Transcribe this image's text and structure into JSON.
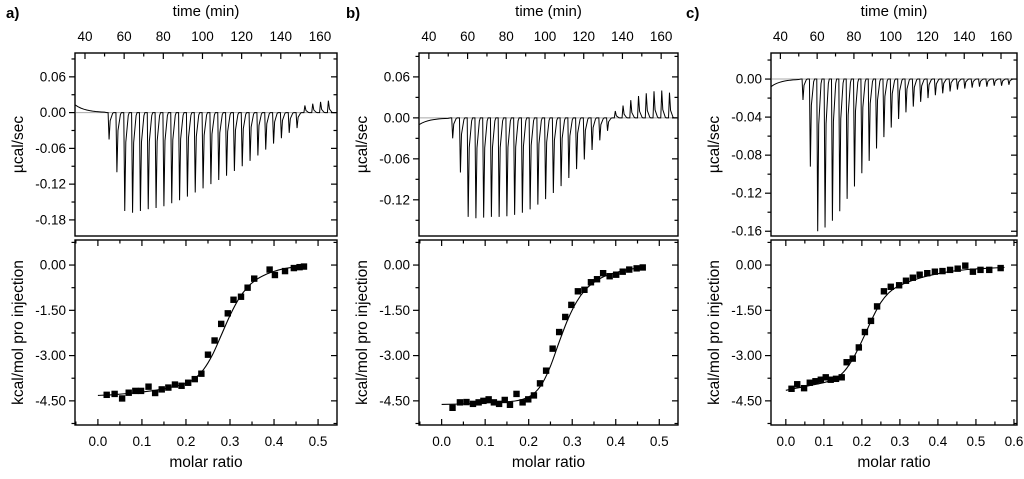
{
  "figure_bg": "#ffffff",
  "colors": {
    "line": "#000000",
    "zero_baseline": "#a8a8a8",
    "marker": "#000000"
  },
  "chart_data": [
    {
      "panel_label": "a)",
      "thermogram": {
        "type": "line",
        "xlabel": "time (min)",
        "ylabel": "µcal/sec",
        "x_ticks": [
          40,
          60,
          80,
          100,
          120,
          140,
          160
        ],
        "x_minor_step": 10,
        "x_range": [
          34.9,
          168.7
        ],
        "y_tick_labels": [
          "0.06",
          "0.00",
          "-0.06",
          "-0.12",
          "-0.18"
        ],
        "y_minor_step": 0.03,
        "y_range": [
          0.1,
          -0.207
        ],
        "lead_in_start_value": 0.013,
        "injection_start_min": 52,
        "injection_interval_min": 4,
        "peak_heights_ucal_per_sec": [
          -0.045,
          -0.1,
          -0.165,
          -0.168,
          -0.165,
          -0.162,
          -0.16,
          -0.157,
          -0.152,
          -0.147,
          -0.141,
          -0.134,
          -0.127,
          -0.12,
          -0.113,
          -0.106,
          -0.098,
          -0.09,
          -0.081,
          -0.072,
          -0.062,
          -0.052,
          -0.043,
          -0.034,
          -0.026,
          0.012,
          0.015,
          0.018,
          0.02
        ]
      },
      "binding": {
        "type": "scatter",
        "xlabel": "molar ratio",
        "ylabel": "kcal/mol pro injection",
        "x_tick_labels": [
          "0.0",
          "0.1",
          "0.2",
          "0.3",
          "0.4",
          "0.5"
        ],
        "x_minor_step": 0.05,
        "x_range": [
          -0.052,
          0.543
        ],
        "y_tick_labels": [
          "0.00",
          "-1.50",
          "-3.00",
          "-4.50"
        ],
        "y_minor_step": 0.75,
        "y_range": [
          0.83,
          -5.3
        ],
        "points": [
          [
            0.02,
            -4.3
          ],
          [
            0.038,
            -4.27
          ],
          [
            0.055,
            -4.42
          ],
          [
            0.07,
            -4.23
          ],
          [
            0.085,
            -4.17
          ],
          [
            0.098,
            -4.17
          ],
          [
            0.115,
            -4.03
          ],
          [
            0.13,
            -4.24
          ],
          [
            0.145,
            -4.12
          ],
          [
            0.16,
            -4.06
          ],
          [
            0.175,
            -3.96
          ],
          [
            0.19,
            -4.0
          ],
          [
            0.205,
            -3.9
          ],
          [
            0.22,
            -3.78
          ],
          [
            0.235,
            -3.6
          ],
          [
            0.25,
            -2.97
          ],
          [
            0.265,
            -2.5
          ],
          [
            0.28,
            -1.95
          ],
          [
            0.295,
            -1.6
          ],
          [
            0.308,
            -1.15
          ],
          [
            0.325,
            -1.05
          ],
          [
            0.34,
            -0.75
          ],
          [
            0.355,
            -0.45
          ],
          [
            0.39,
            -0.15
          ],
          [
            0.402,
            -0.33
          ],
          [
            0.425,
            -0.2
          ],
          [
            0.445,
            -0.1
          ],
          [
            0.458,
            -0.07
          ],
          [
            0.468,
            -0.05
          ]
        ],
        "fit": [
          [
            0.0,
            -4.32
          ],
          [
            0.04,
            -4.29
          ],
          [
            0.08,
            -4.24
          ],
          [
            0.12,
            -4.17
          ],
          [
            0.15,
            -4.1
          ],
          [
            0.18,
            -4.0
          ],
          [
            0.2,
            -3.92
          ],
          [
            0.22,
            -3.76
          ],
          [
            0.24,
            -3.46
          ],
          [
            0.26,
            -2.98
          ],
          [
            0.28,
            -2.33
          ],
          [
            0.3,
            -1.67
          ],
          [
            0.32,
            -1.12
          ],
          [
            0.34,
            -0.73
          ],
          [
            0.36,
            -0.48
          ],
          [
            0.38,
            -0.32
          ],
          [
            0.4,
            -0.21
          ],
          [
            0.42,
            -0.13
          ],
          [
            0.44,
            -0.08
          ],
          [
            0.465,
            -0.04
          ]
        ]
      }
    },
    {
      "panel_label": "b)",
      "thermogram": {
        "type": "line",
        "xlabel": "time (min)",
        "ylabel": "µcal/sec",
        "x_ticks": [
          40,
          60,
          80,
          100,
          120,
          140,
          160
        ],
        "x_minor_step": 10,
        "x_range": [
          34.9,
          168.7
        ],
        "y_tick_labels": [
          "0.06",
          "0.00",
          "-0.06",
          "-0.12"
        ],
        "y_minor_step": 0.03,
        "y_range": [
          0.095,
          -0.173
        ],
        "lead_in_start_value": -0.01,
        "injection_start_min": 52,
        "injection_interval_min": 4,
        "peak_heights_ucal_per_sec": [
          -0.03,
          -0.08,
          -0.145,
          -0.147,
          -0.146,
          -0.145,
          -0.145,
          -0.144,
          -0.142,
          -0.139,
          -0.134,
          -0.127,
          -0.119,
          -0.11,
          -0.1,
          -0.088,
          -0.075,
          -0.061,
          -0.047,
          -0.033,
          -0.019,
          0.01,
          0.018,
          0.026,
          0.032,
          0.036,
          0.039,
          0.04,
          0.037
        ]
      },
      "binding": {
        "type": "scatter",
        "xlabel": "molar ratio",
        "ylabel": "kcal/mol pro injection",
        "x_tick_labels": [
          "0.0",
          "0.1",
          "0.2",
          "0.3",
          "0.4",
          "0.5"
        ],
        "x_minor_step": 0.05,
        "x_range": [
          -0.052,
          0.543
        ],
        "y_tick_labels": [
          "0.00",
          "-1.50",
          "-3.00",
          "-4.50"
        ],
        "y_minor_step": 0.75,
        "y_range": [
          0.83,
          -5.3
        ],
        "points": [
          [
            0.025,
            -4.73
          ],
          [
            0.042,
            -4.55
          ],
          [
            0.057,
            -4.54
          ],
          [
            0.072,
            -4.6
          ],
          [
            0.085,
            -4.55
          ],
          [
            0.096,
            -4.5
          ],
          [
            0.108,
            -4.45
          ],
          [
            0.12,
            -4.55
          ],
          [
            0.132,
            -4.6
          ],
          [
            0.145,
            -4.47
          ],
          [
            0.157,
            -4.63
          ],
          [
            0.172,
            -4.27
          ],
          [
            0.186,
            -4.55
          ],
          [
            0.199,
            -4.45
          ],
          [
            0.212,
            -4.32
          ],
          [
            0.226,
            -3.92
          ],
          [
            0.24,
            -3.5
          ],
          [
            0.255,
            -2.77
          ],
          [
            0.27,
            -2.22
          ],
          [
            0.284,
            -1.72
          ],
          [
            0.298,
            -1.32
          ],
          [
            0.313,
            -0.87
          ],
          [
            0.328,
            -0.82
          ],
          [
            0.343,
            -0.57
          ],
          [
            0.357,
            -0.47
          ],
          [
            0.371,
            -0.27
          ],
          [
            0.386,
            -0.37
          ],
          [
            0.401,
            -0.32
          ],
          [
            0.416,
            -0.22
          ],
          [
            0.431,
            -0.15
          ],
          [
            0.448,
            -0.11
          ],
          [
            0.462,
            -0.08
          ]
        ],
        "fit": [
          [
            0.0,
            -4.62
          ],
          [
            0.05,
            -4.6
          ],
          [
            0.1,
            -4.57
          ],
          [
            0.14,
            -4.54
          ],
          [
            0.17,
            -4.5
          ],
          [
            0.19,
            -4.43
          ],
          [
            0.21,
            -4.28
          ],
          [
            0.23,
            -3.95
          ],
          [
            0.25,
            -3.35
          ],
          [
            0.27,
            -2.55
          ],
          [
            0.29,
            -1.8
          ],
          [
            0.31,
            -1.22
          ],
          [
            0.33,
            -0.82
          ],
          [
            0.35,
            -0.57
          ],
          [
            0.37,
            -0.4
          ],
          [
            0.39,
            -0.29
          ],
          [
            0.41,
            -0.21
          ],
          [
            0.43,
            -0.15
          ],
          [
            0.45,
            -0.1
          ],
          [
            0.465,
            -0.08
          ]
        ]
      }
    },
    {
      "panel_label": "c)",
      "thermogram": {
        "type": "line",
        "xlabel": "time (min)",
        "ylabel": "µcal/sec",
        "x_ticks": [
          40,
          60,
          80,
          100,
          120,
          140,
          160
        ],
        "x_minor_step": 10,
        "x_range": [
          34.9,
          168.7
        ],
        "y_tick_labels": [
          "0.00",
          "-0.04",
          "-0.08",
          "-0.12",
          "-0.16"
        ],
        "y_minor_step": 0.02,
        "y_range": [
          0.0274,
          -0.165
        ],
        "lead_in_start_value": -0.008,
        "injection_start_min": 52,
        "injection_interval_min": 4,
        "peak_heights_ucal_per_sec": [
          -0.022,
          -0.092,
          -0.16,
          -0.156,
          -0.149,
          -0.139,
          -0.126,
          -0.113,
          -0.099,
          -0.086,
          -0.073,
          -0.061,
          -0.051,
          -0.042,
          -0.035,
          -0.029,
          -0.024,
          -0.02,
          -0.017,
          -0.015,
          -0.013,
          -0.011,
          -0.01,
          -0.009,
          -0.008,
          -0.008,
          -0.007,
          -0.007,
          -0.006
        ]
      },
      "binding": {
        "type": "scatter",
        "xlabel": "molar ratio",
        "ylabel": "kcal/mol pro injection",
        "x_tick_labels": [
          "0.0",
          "0.1",
          "0.2",
          "0.3",
          "0.4",
          "0.5",
          "0.6"
        ],
        "x_minor_step": 0.05,
        "x_range": [
          -0.039,
          0.608
        ],
        "y_tick_labels": [
          "0.00",
          "-1.50",
          "-3.00",
          "-4.50"
        ],
        "y_minor_step": 0.75,
        "y_range": [
          0.83,
          -5.3
        ],
        "points": [
          [
            0.015,
            -4.1
          ],
          [
            0.03,
            -3.95
          ],
          [
            0.048,
            -4.08
          ],
          [
            0.063,
            -3.9
          ],
          [
            0.078,
            -3.85
          ],
          [
            0.092,
            -3.8
          ],
          [
            0.105,
            -3.72
          ],
          [
            0.118,
            -3.8
          ],
          [
            0.132,
            -3.77
          ],
          [
            0.147,
            -3.72
          ],
          [
            0.16,
            -3.22
          ],
          [
            0.176,
            -3.1
          ],
          [
            0.192,
            -2.73
          ],
          [
            0.208,
            -2.22
          ],
          [
            0.224,
            -1.85
          ],
          [
            0.24,
            -1.37
          ],
          [
            0.258,
            -0.87
          ],
          [
            0.276,
            -0.72
          ],
          [
            0.298,
            -0.67
          ],
          [
            0.316,
            -0.52
          ],
          [
            0.334,
            -0.42
          ],
          [
            0.352,
            -0.32
          ],
          [
            0.372,
            -0.27
          ],
          [
            0.392,
            -0.22
          ],
          [
            0.412,
            -0.2
          ],
          [
            0.432,
            -0.16
          ],
          [
            0.452,
            -0.12
          ],
          [
            0.472,
            -0.02
          ],
          [
            0.492,
            -0.22
          ],
          [
            0.512,
            -0.16
          ],
          [
            0.535,
            -0.16
          ],
          [
            0.565,
            -0.1
          ]
        ],
        "fit": [
          [
            0.0,
            -4.15
          ],
          [
            0.04,
            -4.05
          ],
          [
            0.08,
            -3.95
          ],
          [
            0.11,
            -3.86
          ],
          [
            0.13,
            -3.76
          ],
          [
            0.15,
            -3.57
          ],
          [
            0.17,
            -3.24
          ],
          [
            0.19,
            -2.78
          ],
          [
            0.21,
            -2.25
          ],
          [
            0.23,
            -1.7
          ],
          [
            0.25,
            -1.24
          ],
          [
            0.27,
            -0.93
          ],
          [
            0.29,
            -0.74
          ],
          [
            0.32,
            -0.57
          ],
          [
            0.35,
            -0.44
          ],
          [
            0.38,
            -0.34
          ],
          [
            0.42,
            -0.24
          ],
          [
            0.46,
            -0.17
          ],
          [
            0.5,
            -0.13
          ],
          [
            0.54,
            -0.1
          ],
          [
            0.575,
            -0.08
          ]
        ]
      }
    }
  ]
}
